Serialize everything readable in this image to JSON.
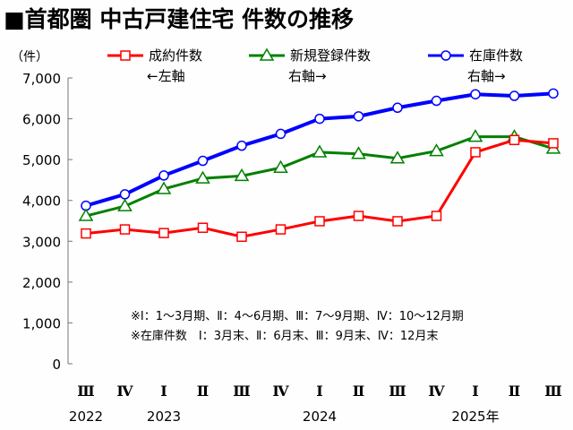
{
  "chart_data": {
    "type": "line",
    "title": "■首都圏 中古戸建住宅 件数の推移",
    "ylabel": "（件）",
    "ylim": [
      0,
      7000
    ],
    "yticks": [
      "0",
      "1,000",
      "2,000",
      "3,000",
      "4,000",
      "5,000",
      "6,000",
      "7,000"
    ],
    "ytick_values": [
      0,
      1000,
      2000,
      3000,
      4000,
      5000,
      6000,
      7000
    ],
    "categories": [
      "Ⅲ",
      "Ⅳ",
      "Ⅰ",
      "Ⅱ",
      "Ⅲ",
      "Ⅳ",
      "Ⅰ",
      "Ⅱ",
      "Ⅲ",
      "Ⅳ",
      "Ⅰ",
      "Ⅱ",
      "Ⅲ"
    ],
    "year_labels": [
      {
        "index": 0,
        "label": "2022"
      },
      {
        "index": 2,
        "label": "2023"
      },
      {
        "index": 6,
        "label": "2024"
      },
      {
        "index": 10,
        "label": "2025年"
      }
    ],
    "grid": false,
    "legend_position": "top",
    "series": [
      {
        "name": "成約件数",
        "axis_note": "←左軸",
        "color": "#ff0000",
        "marker": "square",
        "values": [
          3190,
          3290,
          3200,
          3330,
          3110,
          3290,
          3490,
          3620,
          3490,
          3620,
          5180,
          5480,
          5400
        ]
      },
      {
        "name": "新規登録件数",
        "axis_note": "右軸→",
        "color": "#008000",
        "marker": "triangle",
        "values": [
          3620,
          3860,
          4280,
          4540,
          4600,
          4800,
          5180,
          5140,
          5030,
          5210,
          5560,
          5560,
          5270
        ]
      },
      {
        "name": "在庫件数",
        "axis_note": "右軸→",
        "color": "#0000ff",
        "marker": "circle",
        "values": [
          3870,
          4150,
          4610,
          4970,
          5340,
          5630,
          6000,
          6060,
          6270,
          6440,
          6600,
          6560,
          6620
        ]
      }
    ],
    "annotations": [
      "※Ⅰ：1～3月期、Ⅱ：4～6月期、Ⅲ：7～9月期、Ⅳ：10～12月期",
      "※在庫件数　Ⅰ：3月末、Ⅱ：6月末、Ⅲ：9月末、Ⅳ：12月末"
    ]
  }
}
